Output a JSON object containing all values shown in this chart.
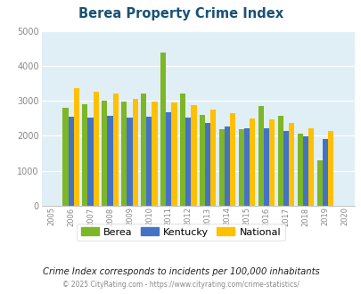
{
  "title": "Berea Property Crime Index",
  "years": [
    2005,
    2006,
    2007,
    2008,
    2009,
    2010,
    2011,
    2012,
    2013,
    2014,
    2015,
    2016,
    2017,
    2018,
    2019,
    2020
  ],
  "berea": [
    null,
    2800,
    2900,
    3000,
    2970,
    3210,
    4390,
    3210,
    2600,
    2200,
    2180,
    2840,
    2580,
    2070,
    1310,
    null
  ],
  "kentucky": [
    null,
    2540,
    2510,
    2570,
    2510,
    2540,
    2680,
    2530,
    2360,
    2260,
    2210,
    2210,
    2150,
    1990,
    1920,
    null
  ],
  "national": [
    null,
    3360,
    3260,
    3220,
    3060,
    2970,
    2960,
    2890,
    2750,
    2640,
    2500,
    2460,
    2380,
    2220,
    2140,
    null
  ],
  "berea_color": "#7DB626",
  "kentucky_color": "#4472C4",
  "national_color": "#FFC000",
  "bg_color": "#E0EEF5",
  "ylim": [
    0,
    5000
  ],
  "yticks": [
    0,
    1000,
    2000,
    3000,
    4000,
    5000
  ],
  "subtitle": "Crime Index corresponds to incidents per 100,000 inhabitants",
  "footer": "© 2025 CityRating.com - https://www.cityrating.com/crime-statistics/",
  "legend_labels": [
    "Berea",
    "Kentucky",
    "National"
  ],
  "title_color": "#1a5276",
  "subtitle_color": "#222222",
  "footer_color": "#888888",
  "tick_color": "#888888"
}
